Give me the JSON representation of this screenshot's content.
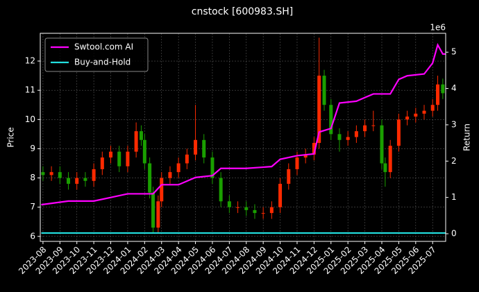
{
  "chart_data": {
    "type": "candlestick",
    "title": "cnstock [600983.SH]",
    "ylabel": "Price",
    "y2label": "Return",
    "y2_offset_label": "1e6",
    "xlim": [
      -0.16,
      23.77
    ],
    "xticks": [
      {
        "value": 0,
        "label": "2023-08"
      },
      {
        "value": 1,
        "label": "2023-09"
      },
      {
        "value": 2,
        "label": "2023-10"
      },
      {
        "value": 3,
        "label": "2023-11"
      },
      {
        "value": 4,
        "label": "2023-12"
      },
      {
        "value": 5,
        "label": "2024-01"
      },
      {
        "value": 6,
        "label": "2024-02"
      },
      {
        "value": 7,
        "label": "2024-03"
      },
      {
        "value": 8,
        "label": "2024-04"
      },
      {
        "value": 9,
        "label": "2024-05"
      },
      {
        "value": 10,
        "label": "2024-06"
      },
      {
        "value": 11,
        "label": "2024-07"
      },
      {
        "value": 12,
        "label": "2024-08"
      },
      {
        "value": 13,
        "label": "2024-09"
      },
      {
        "value": 14,
        "label": "2024-10"
      },
      {
        "value": 15,
        "label": "2024-11"
      },
      {
        "value": 16,
        "label": "2024-12"
      },
      {
        "value": 17,
        "label": "2025-01"
      },
      {
        "value": 18,
        "label": "2025-02"
      },
      {
        "value": 19,
        "label": "2025-03"
      },
      {
        "value": 20,
        "label": "2025-04"
      },
      {
        "value": 21,
        "label": "2025-05"
      },
      {
        "value": 22,
        "label": "2025-06"
      },
      {
        "value": 23,
        "label": "2025-07"
      }
    ],
    "ylim": [
      5.83,
      12.95
    ],
    "yticks": [
      6,
      7,
      8,
      9,
      10,
      11,
      12
    ],
    "y2lim": [
      -0.21,
      5.52
    ],
    "y2ticks": [
      0,
      1,
      2,
      3,
      4,
      5
    ],
    "grid": true,
    "legend": "upper left",
    "candles": {
      "up_color": "#ff2a00",
      "down_color": "#1a9f00",
      "x": [
        0,
        0.5,
        1,
        1.5,
        2,
        2.5,
        3,
        3.5,
        4,
        4.5,
        5,
        5.5,
        5.8,
        6,
        6.3,
        6.5,
        6.8,
        7,
        7.5,
        8,
        8.5,
        9,
        9.5,
        10,
        10.5,
        11,
        11.5,
        12,
        12.5,
        13,
        13.5,
        14,
        14.5,
        15,
        15.5,
        16,
        16.3,
        16.6,
        17,
        17.5,
        18,
        18.5,
        19,
        19.5,
        20,
        20.2,
        20.5,
        21,
        21.5,
        22,
        22.5,
        23,
        23.3,
        23.6
      ],
      "open": [
        8.2,
        8.1,
        8.2,
        8.0,
        7.8,
        8.0,
        7.9,
        8.3,
        8.7,
        8.9,
        8.4,
        8.9,
        9.6,
        9.3,
        8.5,
        7.5,
        6.3,
        7.2,
        8.0,
        8.2,
        8.5,
        8.8,
        9.3,
        8.7,
        8.0,
        7.2,
        7.0,
        7.0,
        6.9,
        6.8,
        6.8,
        7.0,
        7.8,
        8.3,
        8.7,
        8.8,
        9.2,
        11.5,
        10.5,
        9.5,
        9.3,
        9.4,
        9.6,
        9.8,
        9.8,
        8.5,
        8.2,
        9.1,
        10.0,
        10.1,
        10.2,
        10.3,
        10.5,
        11.2
      ],
      "high": [
        8.4,
        8.4,
        8.4,
        8.2,
        8.2,
        8.2,
        8.5,
        8.9,
        9.1,
        9.1,
        9.1,
        9.9,
        9.8,
        9.5,
        8.7,
        7.7,
        7.4,
        8.2,
        8.4,
        8.7,
        9.0,
        10.5,
        9.5,
        8.9,
        8.2,
        7.4,
        7.2,
        7.2,
        7.1,
        7.0,
        7.2,
        8.0,
        8.5,
        8.9,
        9.0,
        9.4,
        12.8,
        11.7,
        10.7,
        9.7,
        9.6,
        9.8,
        10.0,
        10.3,
        10.0,
        8.7,
        9.3,
        10.2,
        10.3,
        10.4,
        10.5,
        10.7,
        11.5,
        11.4
      ],
      "low": [
        7.9,
        7.9,
        7.8,
        7.6,
        7.6,
        7.7,
        7.7,
        8.1,
        8.5,
        8.2,
        8.2,
        8.7,
        9.1,
        8.3,
        7.3,
        6.1,
        6.1,
        7.0,
        7.8,
        8.0,
        8.3,
        8.6,
        8.5,
        7.8,
        7.0,
        6.8,
        6.8,
        6.7,
        6.6,
        6.6,
        6.6,
        6.8,
        7.6,
        8.1,
        8.5,
        8.6,
        9.0,
        10.3,
        9.3,
        8.9,
        9.1,
        9.2,
        9.4,
        9.6,
        8.3,
        7.7,
        8.0,
        8.9,
        9.8,
        9.9,
        10.0,
        10.1,
        10.3,
        10.7
      ],
      "close": [
        8.1,
        8.2,
        8.0,
        7.8,
        8.0,
        7.9,
        8.3,
        8.7,
        8.9,
        8.4,
        8.9,
        9.6,
        9.3,
        8.5,
        7.5,
        6.3,
        7.2,
        8.0,
        8.2,
        8.5,
        8.8,
        9.3,
        8.7,
        8.0,
        7.2,
        7.0,
        7.0,
        6.9,
        6.8,
        6.8,
        7.0,
        7.8,
        8.3,
        8.7,
        8.8,
        9.2,
        11.5,
        10.5,
        9.5,
        9.3,
        9.4,
        9.6,
        9.8,
        9.8,
        8.5,
        8.2,
        9.1,
        10.0,
        10.1,
        10.2,
        10.3,
        10.5,
        11.2,
        10.9
      ]
    },
    "series": [
      {
        "name": "Swtool.com AI",
        "color": "#ff00ff",
        "axis": "y2",
        "x": [
          -0.1,
          1.5,
          3,
          4,
          5,
          6.5,
          7,
          8,
          9,
          10,
          10.5,
          12,
          13.5,
          14,
          15,
          16,
          16.3,
          17,
          17.5,
          18.5,
          19,
          19.5,
          20.5,
          21,
          21.5,
          22.5,
          23,
          23.3,
          23.6,
          23.75
        ],
        "values": [
          0.8,
          0.9,
          0.9,
          1.0,
          1.1,
          1.1,
          1.35,
          1.35,
          1.55,
          1.6,
          1.8,
          1.8,
          1.85,
          2.05,
          2.15,
          2.2,
          2.8,
          2.9,
          3.6,
          3.65,
          3.75,
          3.85,
          3.85,
          4.25,
          4.35,
          4.4,
          4.7,
          5.2,
          4.95,
          4.95
        ]
      },
      {
        "name": "Buy-and-Hold",
        "color": "#22e0e0",
        "axis": "y2",
        "x": [
          -0.1,
          23.75
        ],
        "values": [
          0.02,
          0.02
        ]
      }
    ]
  }
}
